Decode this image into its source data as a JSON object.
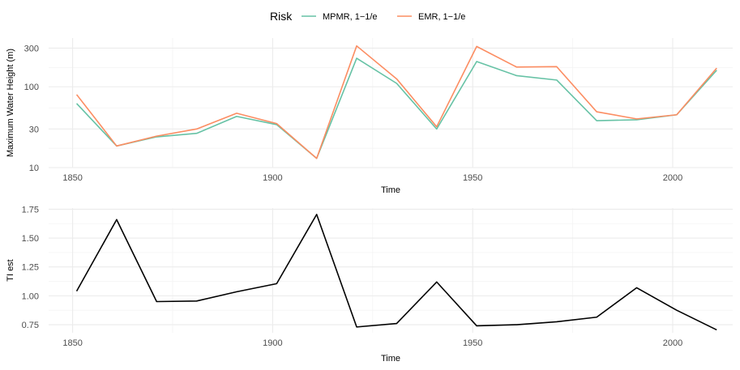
{
  "legend": {
    "title": "Risk",
    "items": [
      {
        "label": "MPMR, 1−1/e",
        "color": "#66c2a5"
      },
      {
        "label": "EMR, 1−1/e",
        "color": "#fc8d62"
      }
    ]
  },
  "chart_data": [
    {
      "type": "line",
      "xlabel": "Time",
      "ylabel": "Maximum Water Height (m)",
      "yscale": "log10",
      "xlim": [
        1844,
        2015
      ],
      "ylim": [
        10,
        400
      ],
      "xticks": [
        1850,
        1900,
        1950,
        2000
      ],
      "yticks": [
        10,
        30,
        100,
        300
      ],
      "grid": true,
      "legend_position": "top",
      "x": [
        1851,
        1861,
        1871,
        1881,
        1891,
        1901,
        1911,
        1921,
        1931,
        1941,
        1951,
        1961,
        1971,
        1981,
        1991,
        2001,
        2011
      ],
      "series": [
        {
          "name": "MPMR, 1−1/e",
          "color": "#66c2a5",
          "values": [
            62,
            18.5,
            24,
            26.5,
            43,
            34,
            13,
            225,
            110,
            30,
            205,
            137,
            121,
            38,
            39,
            45,
            160
          ]
        },
        {
          "name": "EMR, 1−1/e",
          "color": "#fc8d62",
          "values": [
            80,
            18.5,
            24.5,
            30,
            47,
            35,
            13,
            320,
            125,
            32,
            315,
            175,
            177,
            49,
            40,
            45,
            170
          ]
        }
      ]
    },
    {
      "type": "line",
      "xlabel": "Time",
      "ylabel": "TI est",
      "xlim": [
        1844,
        2015
      ],
      "ylim": [
        0.68,
        1.76
      ],
      "xticks": [
        1850,
        1900,
        1950,
        2000
      ],
      "yticks": [
        0.75,
        1.0,
        1.25,
        1.5,
        1.75
      ],
      "ytick_labels": [
        "0.75",
        "1.00",
        "1.25",
        "1.50",
        "1.75"
      ],
      "grid": true,
      "x": [
        1851,
        1861,
        1871,
        1881,
        1891,
        1901,
        1911,
        1921,
        1931,
        1941,
        1951,
        1961,
        1971,
        1981,
        1991,
        2001,
        2011
      ],
      "series": [
        {
          "color": "#000000",
          "values": [
            1.04,
            1.66,
            0.95,
            0.955,
            1.035,
            1.105,
            1.705,
            0.73,
            0.76,
            1.12,
            0.74,
            0.75,
            0.775,
            0.815,
            1.07,
            0.875,
            0.705
          ]
        }
      ]
    }
  ]
}
